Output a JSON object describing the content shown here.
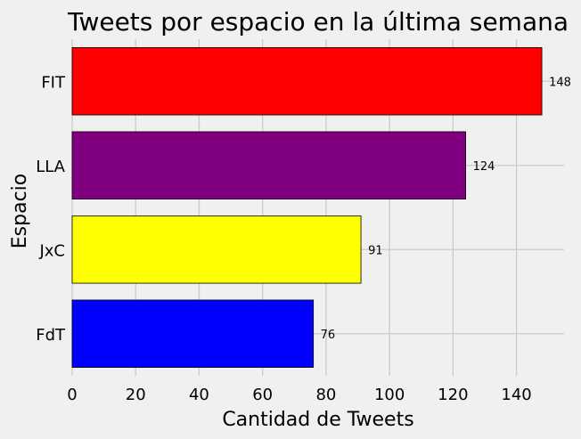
{
  "chart_data": {
    "type": "bar",
    "orientation": "horizontal",
    "title": "Tweets por espacio en la última semana",
    "xlabel": "Cantidad de Tweets",
    "ylabel": "Espacio",
    "categories": [
      "FdT",
      "JxC",
      "LLA",
      "FIT"
    ],
    "values": [
      76,
      91,
      124,
      148
    ],
    "colors": [
      "#0000ff",
      "#ffff00",
      "#800080",
      "#ff0000"
    ],
    "xlim": [
      0,
      155
    ],
    "xticks": [
      0,
      20,
      40,
      60,
      80,
      100,
      120,
      140
    ],
    "grid": true,
    "data_labels": true
  }
}
